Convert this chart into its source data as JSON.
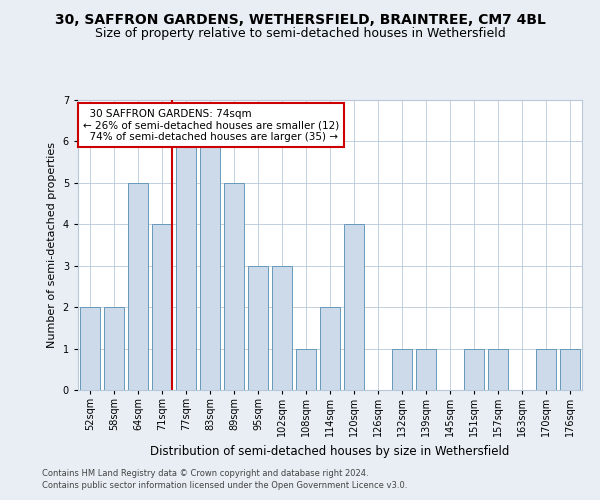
{
  "title1": "30, SAFFRON GARDENS, WETHERSFIELD, BRAINTREE, CM7 4BL",
  "title2": "Size of property relative to semi-detached houses in Wethersfield",
  "xlabel": "Distribution of semi-detached houses by size in Wethersfield",
  "ylabel": "Number of semi-detached properties",
  "categories": [
    "52sqm",
    "58sqm",
    "64sqm",
    "71sqm",
    "77sqm",
    "83sqm",
    "89sqm",
    "95sqm",
    "102sqm",
    "108sqm",
    "114sqm",
    "120sqm",
    "126sqm",
    "132sqm",
    "139sqm",
    "145sqm",
    "151sqm",
    "157sqm",
    "163sqm",
    "170sqm",
    "176sqm"
  ],
  "values": [
    2,
    2,
    5,
    4,
    6,
    6,
    5,
    3,
    3,
    1,
    2,
    4,
    0,
    1,
    1,
    0,
    1,
    1,
    0,
    1,
    1
  ],
  "bar_color": "#ccdaea",
  "bar_edge_color": "#6699bb",
  "highlight_index": 3,
  "highlight_line_color": "#cc0000",
  "annotation_line1": "  30 SAFFRON GARDENS: 74sqm",
  "annotation_line2": "← 26% of semi-detached houses are smaller (12)",
  "annotation_line3": "  74% of semi-detached houses are larger (35) →",
  "annotation_box_color": "#ffffff",
  "annotation_box_edge": "#cc0000",
  "ylim": [
    0,
    7
  ],
  "yticks": [
    0,
    1,
    2,
    3,
    4,
    5,
    6,
    7
  ],
  "footer1": "Contains HM Land Registry data © Crown copyright and database right 2024.",
  "footer2": "Contains public sector information licensed under the Open Government Licence v3.0.",
  "background_color": "#e8eef4",
  "plot_bg_color": "#ffffff",
  "grid_color": "#b8c8d8",
  "title1_fontsize": 10,
  "title2_fontsize": 9,
  "tick_fontsize": 7,
  "ylabel_fontsize": 8,
  "xlabel_fontsize": 8.5,
  "annotation_fontsize": 7.5,
  "footer_fontsize": 6
}
